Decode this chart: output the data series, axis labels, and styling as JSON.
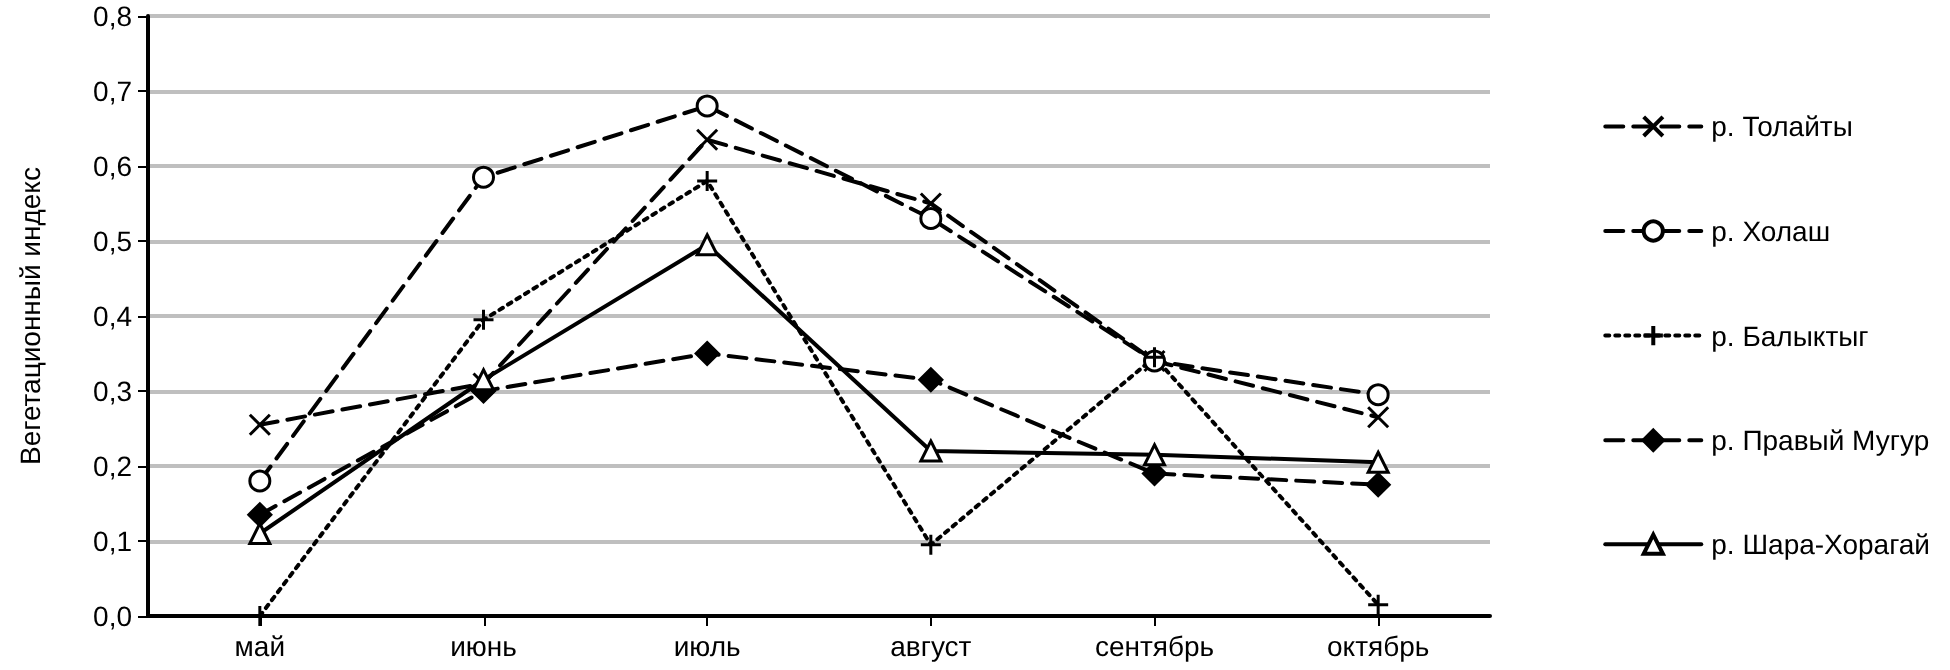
{
  "chart_data": {
    "type": "line",
    "ylabel": "Вегетационный индекс",
    "categories": [
      "май",
      "июнь",
      "июль",
      "август",
      "сентябрь",
      "октябрь"
    ],
    "series": [
      {
        "name": "р. Толайты",
        "color": "#000000",
        "marker": "x",
        "line_style": "dashed",
        "values": [
          0.255,
          0.31,
          0.635,
          0.55,
          0.34,
          0.265
        ]
      },
      {
        "name": "р. Холаш",
        "color": "#000000",
        "marker": "circle",
        "line_style": "dashed",
        "values": [
          0.18,
          0.585,
          0.68,
          0.53,
          0.34,
          0.295
        ]
      },
      {
        "name": "р. Балыктыг",
        "color": "#000000",
        "marker": "cross",
        "line_style": "dotted",
        "values": [
          0.0,
          0.395,
          0.58,
          0.095,
          0.345,
          0.015
        ]
      },
      {
        "name": "р. Правый Мугур",
        "color": "#000000",
        "marker": "diamond",
        "line_style": "dashed",
        "values": [
          0.135,
          0.3,
          0.35,
          0.315,
          0.19,
          0.175
        ]
      },
      {
        "name": "р. Шара-Хорагай",
        "color": "#000000",
        "marker": "triangle",
        "line_style": "solid",
        "values": [
          0.11,
          0.315,
          0.495,
          0.22,
          0.215,
          0.205
        ]
      }
    ],
    "ylim": [
      0,
      0.8
    ],
    "yticks": [
      {
        "value": 0,
        "label": "0,0"
      },
      {
        "value": 0.1,
        "label": "0,1"
      },
      {
        "value": 0.2,
        "label": "0,2"
      },
      {
        "value": 0.3,
        "label": "0,3"
      },
      {
        "value": 0.4,
        "label": "0,4"
      },
      {
        "value": 0.5,
        "label": "0,5"
      },
      {
        "value": 0.6,
        "label": "0,6"
      },
      {
        "value": 0.7,
        "label": "0,7"
      },
      {
        "value": 0.8,
        "label": "0,8"
      }
    ],
    "grid": "y",
    "legend": "right"
  }
}
